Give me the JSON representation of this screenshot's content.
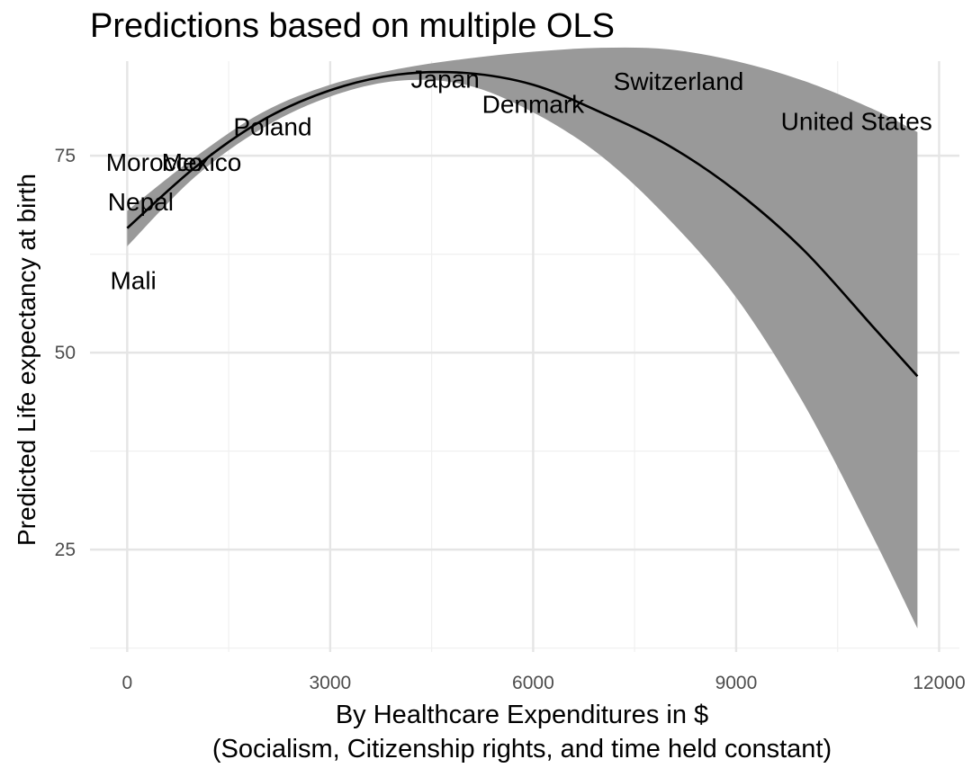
{
  "chart_data": {
    "type": "line",
    "title": "Predictions based on multiple OLS",
    "xlabel_line1": "By Healthcare Expenditures in $",
    "xlabel_line2": "(Socialism, Citizenship rights, and time held constant)",
    "ylabel": "Predicted Life expectancy at birth",
    "xlim": [
      -550,
      12300
    ],
    "ylim": [
      12,
      87
    ],
    "x_ticks": [
      0,
      3000,
      6000,
      9000,
      12000
    ],
    "x_tick_labels": [
      "0",
      "3000",
      "6000",
      "9000",
      "12000"
    ],
    "y_ticks": [
      25,
      50,
      75
    ],
    "y_tick_labels": [
      "25",
      "50",
      "75"
    ],
    "grid": true,
    "line_color": "#000000",
    "ribbon_color": "#999999",
    "series": [
      {
        "x": [
          0,
          1000,
          2000,
          3000,
          4000,
          5000,
          6000,
          7000,
          8000,
          9000,
          10000,
          11000,
          11680
        ],
        "fit": [
          65.8,
          73.5,
          79.5,
          83.3,
          85.3,
          85.5,
          84.0,
          80.5,
          76.3,
          70.5,
          63.0,
          53.5,
          47.0
        ],
        "lower": [
          63.5,
          72.3,
          78.5,
          82.5,
          84.5,
          84.0,
          80.5,
          75.0,
          67.0,
          57.0,
          43.5,
          27.0,
          15.0
        ],
        "upper": [
          68.0,
          74.8,
          80.5,
          84.0,
          86.0,
          87.3,
          88.2,
          88.7,
          88.5,
          87.0,
          84.5,
          81.0,
          78.0
        ]
      }
    ],
    "point_labels": [
      {
        "text": "Morocco",
        "x": 400,
        "y": 74.2
      },
      {
        "text": "Mexico",
        "x": 1100,
        "y": 74.2
      },
      {
        "text": "Nepal",
        "x": 200,
        "y": 69.2
      },
      {
        "text": "Mali",
        "x": 90,
        "y": 59.2
      },
      {
        "text": "Poland",
        "x": 2150,
        "y": 78.7
      },
      {
        "text": "Japan",
        "x": 4700,
        "y": 84.8
      },
      {
        "text": "Denmark",
        "x": 6000,
        "y": 81.6
      },
      {
        "text": "Switzerland",
        "x": 8150,
        "y": 84.5
      },
      {
        "text": "United States",
        "x": 10780,
        "y": 79.4
      }
    ]
  }
}
